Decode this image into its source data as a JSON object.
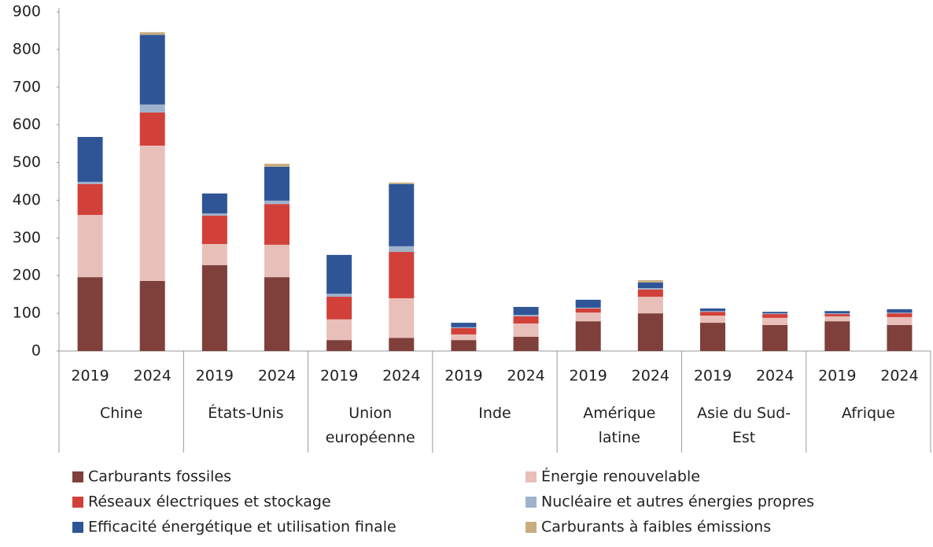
{
  "chart_data": {
    "type": "stacked-bar",
    "categories": [
      "2019",
      "2024",
      "2019",
      "2024",
      "2019",
      "2024",
      "2019",
      "2024",
      "2019",
      "2024",
      "2019",
      "2024",
      "2019",
      "2024"
    ],
    "groups": [
      "Chine",
      "États-Unis",
      "Union européenne",
      "Inde",
      "Amérique latine",
      "Asie du Sud-Est",
      "Afrique"
    ],
    "ylim": [
      0,
      900
    ],
    "yticks": [
      0,
      100,
      200,
      300,
      400,
      500,
      600,
      700,
      800,
      900
    ],
    "series": [
      {
        "name": "Carburants fossiles",
        "color": "#7f3f3a",
        "values": [
          196,
          186,
          228,
          196,
          29,
          35,
          29,
          38,
          79,
          100,
          75,
          69,
          79,
          69
        ]
      },
      {
        "name": "Énergie renouvelable",
        "color": "#e8bfb9",
        "values": [
          165,
          359,
          56,
          86,
          55,
          105,
          15,
          35,
          23,
          44,
          19,
          19,
          13,
          21
        ]
      },
      {
        "name": "Réseaux électriques et stockage",
        "color": "#d2403a",
        "values": [
          82,
          88,
          75,
          108,
          60,
          123,
          17,
          19,
          11,
          19,
          10,
          10,
          6,
          10
        ]
      },
      {
        "name": "Nucléaire et autres énergies propres",
        "color": "#9fb2cb",
        "values": [
          6,
          21,
          6,
          9,
          8,
          15,
          2,
          4,
          2,
          4,
          2,
          2,
          2,
          2
        ]
      },
      {
        "name": "Efficacité énergétique et utilisation finale",
        "color": "#2f5597",
        "values": [
          119,
          185,
          53,
          90,
          103,
          165,
          12,
          21,
          21,
          15,
          7,
          4,
          6,
          9
        ]
      },
      {
        "name": "Carburants à faibles émissions",
        "color": "#c8ad7f",
        "values": [
          0,
          7,
          0,
          8,
          0,
          4,
          0,
          0,
          0,
          6,
          0,
          0,
          0,
          0
        ]
      }
    ]
  }
}
